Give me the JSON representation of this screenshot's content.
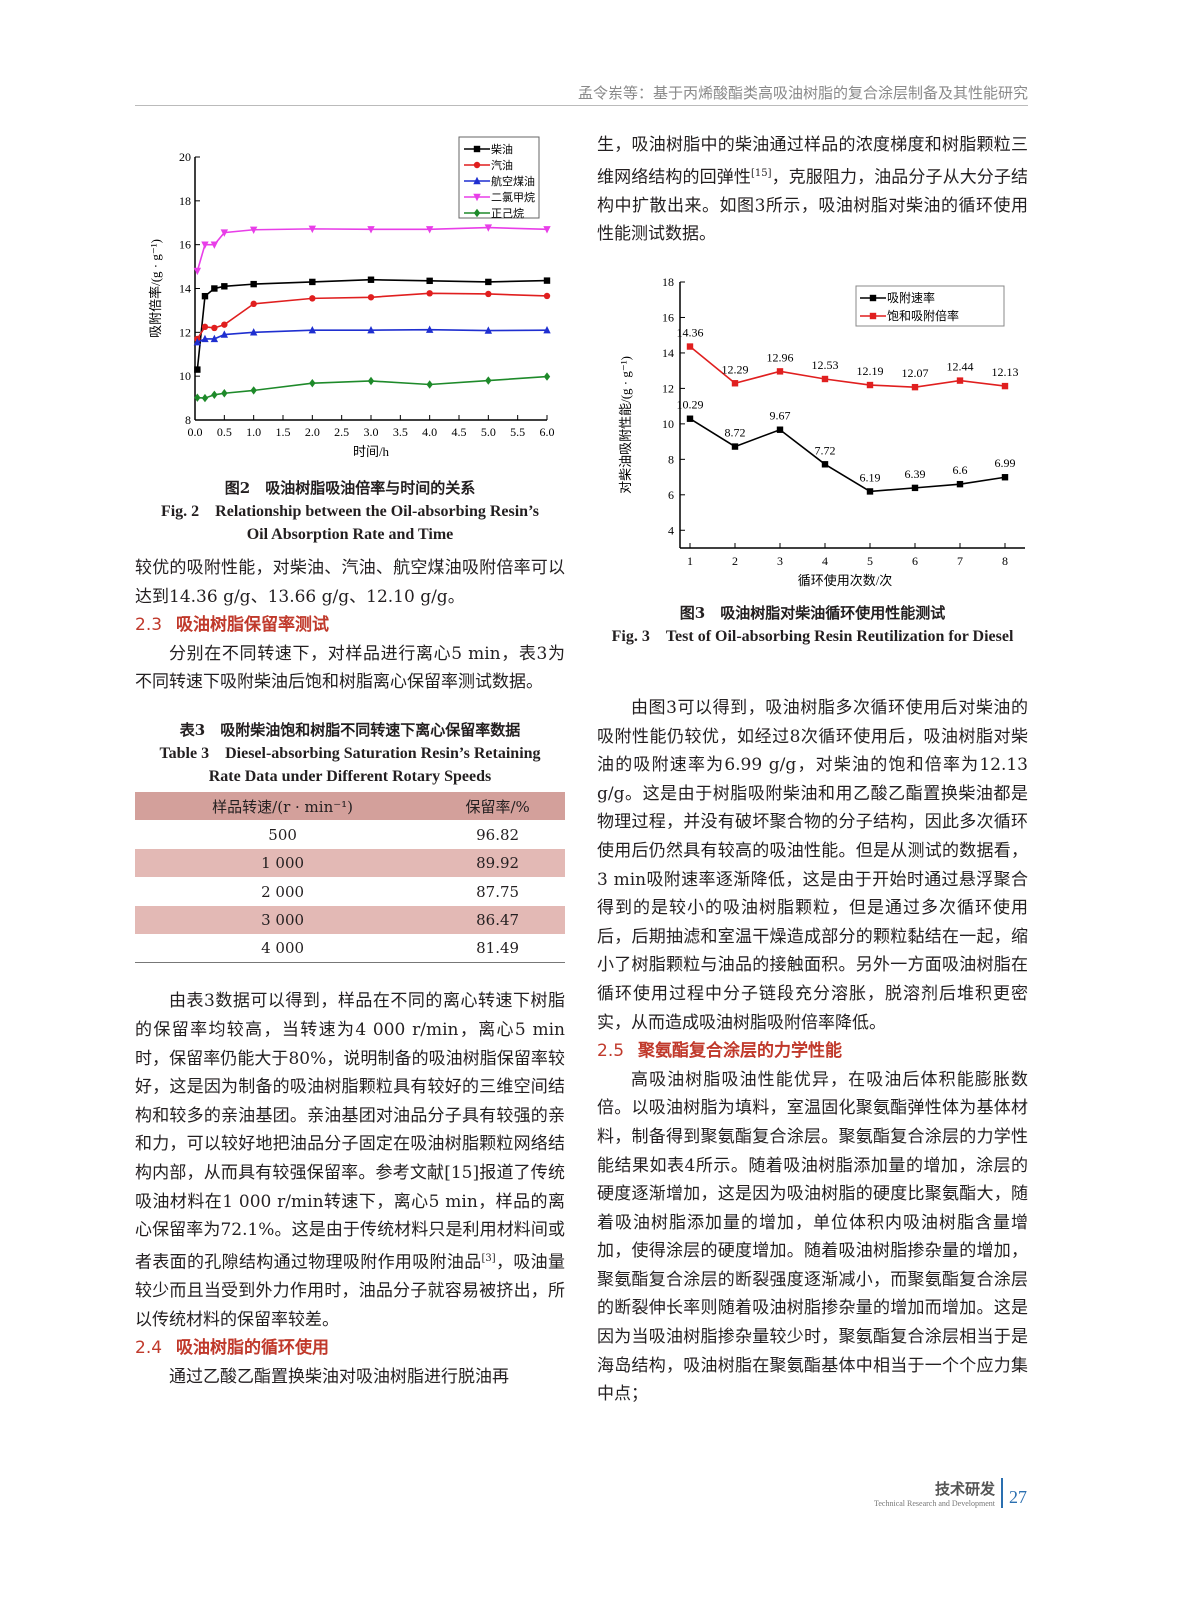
{
  "header": {
    "running_title": "孟令岽等：基于丙烯酸酯类高吸油树脂的复合涂层制备及其性能研究"
  },
  "footer": {
    "section_cn": "技术研发",
    "section_en": "Technical Research and Development",
    "page": "27"
  },
  "left": {
    "fig2_cap_cn": "图2　吸油树脂吸油倍率与时间的关系",
    "fig2_cap_en1": "Fig. 2　Relationship between the Oil-absorbing Resin’s",
    "fig2_cap_en2": "Oil Absorption Rate and Time",
    "p1": "较优的吸附性能，对柴油、汽油、航空煤油吸附倍率可以达到14.36 g/g、13.66 g/g、12.10 g/g。",
    "h23_num": "2.3",
    "h23": "吸油树脂保留率测试",
    "p2": "分别在不同转速下，对样品进行离心5 min，表3为不同转速下吸附柴油后饱和树脂离心保留率测试数据。",
    "tab_cap_cn": "表3　吸附柴油饱和树脂不同转速下离心保留率数据",
    "tab_cap_en1": "Table 3　Diesel-absorbing Saturation Resin’s Retaining",
    "tab_cap_en2": "Rate Data under Different Rotary Speeds",
    "table": {
      "headers": [
        "样品转速/(r · min⁻¹)",
        "保留率/%"
      ],
      "rows": [
        [
          "500",
          "96.82"
        ],
        [
          "1 000",
          "89.92"
        ],
        [
          "2 000",
          "87.75"
        ],
        [
          "3 000",
          "86.47"
        ],
        [
          "4 000",
          "81.49"
        ]
      ]
    },
    "p3a": "由表3数据可以得到，样品在不同的离心转速下树脂的保留率均较高，当转速为4 000 r/min，离心5 min时，保留率仍能大于80%，说明制备的吸油树脂保留率较好，这是因为制备的吸油树脂颗粒具有较好的三维空间结构和较多的亲油基团。亲油基团对油品分子具有较强的亲和力，可以较好地把油品分子固定在吸油树脂颗粒网络结构内部，从而具有较强保留率。参考文献[15]报道了传统吸油材料在1 000 r/min转速下，离心5 min，样品的离心保留率为72.1%。这是由于传统材料只是利用材料间或者表面的孔隙结构通过物理吸附作用吸附油品",
    "p3sup": "[3]",
    "p3b": "，吸油量较少而且当受到外力作用时，油品分子就容易被挤出，所以传统材料的保留率较差。",
    "h24_num": "2.4",
    "h24": "吸油树脂的循环使用",
    "p4": "通过乙酸乙酯置换柴油对吸油树脂进行脱油再"
  },
  "right": {
    "p1a": "生，吸油树脂中的柴油通过样品的浓度梯度和树脂颗粒三维网络结构的回弹性",
    "p1sup": "[15]",
    "p1b": "，克服阻力，油品分子从大分子结构中扩散出来。如图3所示，吸油树脂对柴油的循环使用性能测试数据。",
    "fig3_cap_cn": "图3　吸油树脂对柴油循环使用性能测试",
    "fig3_cap_en": "Fig. 3　Test of Oil-absorbing Resin Reutilization for Diesel",
    "p2": "由图3可以得到，吸油树脂多次循环使用后对柴油的吸附性能仍较优，如经过8次循环使用后，吸油树脂对柴油的吸附速率为6.99 g/g，对柴油的饱和倍率为12.13 g/g。这是由于树脂吸附柴油和用乙酸乙酯置换柴油都是物理过程，并没有破坏聚合物的分子结构，因此多次循环使用后仍然具有较高的吸油性能。但是从测试的数据看，3 min吸附速率逐渐降低，这是由于开始时通过悬浮聚合得到的是较小的吸油树脂颗粒，但是通过多次循环使用后，后期抽滤和室温干燥造成部分的颗粒黏结在一起，缩小了树脂颗粒与油品的接触面积。另外一方面吸油树脂在循环使用过程中分子链段充分溶胀，脱溶剂后堆积更密实，从而造成吸油树脂吸附倍率降低。",
    "h25_num": "2.5",
    "h25": "聚氨酯复合涂层的力学性能",
    "p3": "高吸油树脂吸油性能优异，在吸油后体积能膨胀数倍。以吸油树脂为填料，室温固化聚氨酯弹性体为基体材料，制备得到聚氨酯复合涂层。聚氨酯复合涂层的力学性能结果如表4所示。随着吸油树脂添加量的增加，涂层的硬度逐渐增加，这是因为吸油树脂的硬度比聚氨酯大，随着吸油树脂添加量的增加，单位体积内吸油树脂含量增加，使得涂层的硬度增加。随着吸油树脂掺杂量的增加，聚氨酯复合涂层的断裂强度逐渐减小，而聚氨酯复合涂层的断裂伸长率则随着吸油树脂掺杂量的增加而增加。这是因为当吸油树脂掺杂量较少时，聚氨酯复合涂层相当于是海岛结构，吸油树脂在聚氨酯基体中相当于一个个应力集中点；"
  },
  "chart_data": [
    {
      "type": "line",
      "xlabel": "时间/h",
      "ylabel": "吸附倍率/(g · g⁻¹)",
      "xlim": [
        0,
        6
      ],
      "ylim": [
        8,
        20
      ],
      "xticks": [
        "0.0",
        "0.5",
        "1.0",
        "1.5",
        "2.0",
        "2.5",
        "3.0",
        "3.5",
        "4.0",
        "4.5",
        "5.0",
        "5.5",
        "6.0"
      ],
      "yticks": [
        "8",
        "10",
        "12",
        "14",
        "16",
        "18",
        "20"
      ],
      "legend": "top-right",
      "x": [
        0.04,
        0.17,
        0.33,
        0.5,
        1,
        2,
        3,
        4,
        5,
        6
      ],
      "series": [
        {
          "name": "柴油",
          "color": "#000000",
          "marker": "square",
          "values": [
            10.3,
            13.65,
            14.0,
            14.1,
            14.2,
            14.3,
            14.4,
            14.35,
            14.3,
            14.36
          ]
        },
        {
          "name": "汽油",
          "color": "#e01f1f",
          "marker": "circle",
          "values": [
            11.7,
            12.25,
            12.2,
            12.35,
            13.3,
            13.55,
            13.6,
            13.78,
            13.75,
            13.66
          ]
        },
        {
          "name": "航空煤油",
          "color": "#1f2fd0",
          "marker": "triangle-up",
          "values": [
            11.55,
            11.7,
            11.7,
            11.9,
            12.0,
            12.1,
            12.1,
            12.12,
            12.08,
            12.1
          ]
        },
        {
          "name": "二氯甲烷",
          "color": "#e83ee8",
          "marker": "triangle-down",
          "values": [
            14.8,
            16.0,
            16.0,
            16.55,
            16.68,
            16.72,
            16.7,
            16.7,
            16.78,
            16.7
          ]
        },
        {
          "name": "正己烷",
          "color": "#1e8a2a",
          "marker": "diamond",
          "values": [
            9.02,
            9.0,
            9.15,
            9.22,
            9.35,
            9.68,
            9.78,
            9.62,
            9.8,
            9.98
          ]
        }
      ]
    },
    {
      "type": "line",
      "xlabel": "循环使用次数/次",
      "ylabel": "对柴油吸附性能/(g · g⁻¹)",
      "xlim": [
        0.8,
        8.2
      ],
      "ylim": [
        3,
        18
      ],
      "xticks": [
        "1",
        "2",
        "3",
        "4",
        "5",
        "6",
        "7",
        "8"
      ],
      "yticks": [
        "4",
        "6",
        "8",
        "10",
        "12",
        "14",
        "16",
        "18"
      ],
      "legend": "top-right",
      "x": [
        1,
        2,
        3,
        4,
        5,
        6,
        7,
        8
      ],
      "series": [
        {
          "name": "吸附速率",
          "color": "#000000",
          "values": [
            10.29,
            8.72,
            9.67,
            7.72,
            6.19,
            6.39,
            6.6,
            6.99
          ],
          "labels": [
            "10.29",
            "8.72",
            "9.67",
            "7.72",
            "6.19",
            "6.39",
            "6.6",
            "6.99"
          ]
        },
        {
          "name": "饱和吸附倍率",
          "color": "#e01f1f",
          "values": [
            14.36,
            12.29,
            12.96,
            12.53,
            12.19,
            12.07,
            12.44,
            12.13
          ],
          "labels": [
            "14.36",
            "12.29",
            "12.96",
            "12.53",
            "12.19",
            "12.07",
            "12.44",
            "12.13"
          ]
        }
      ]
    }
  ]
}
